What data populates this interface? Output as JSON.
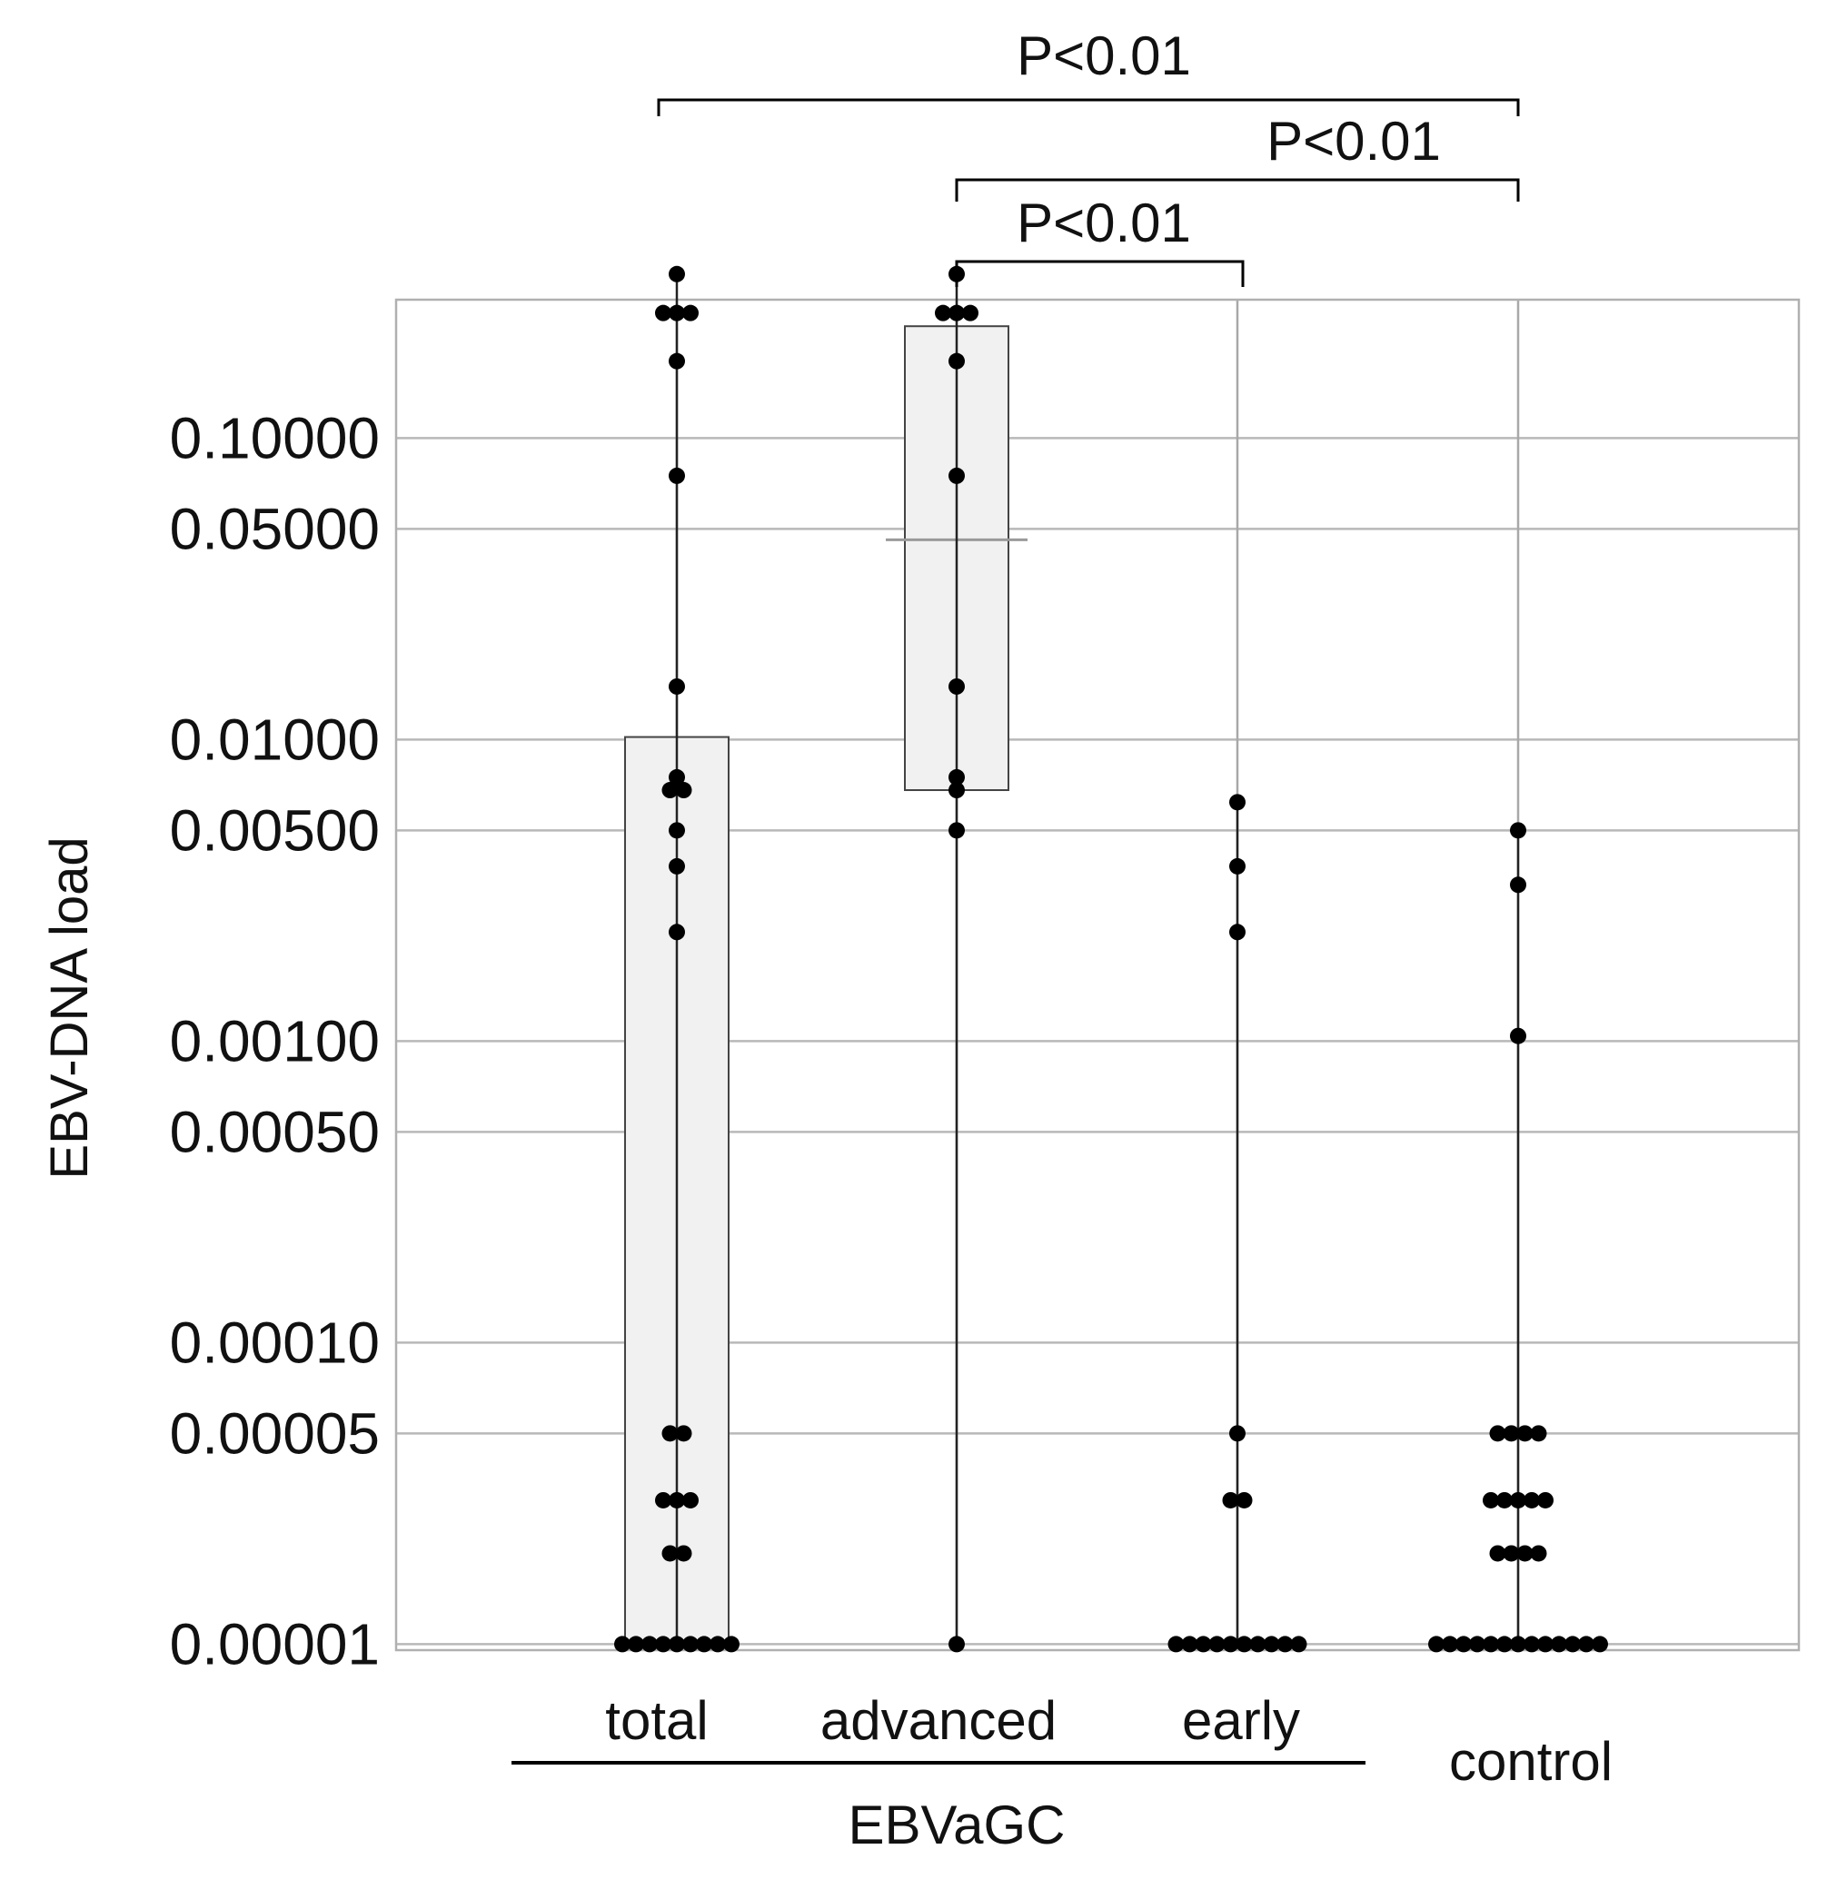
{
  "chart_data": {
    "type": "scatter",
    "ylabel": "EBV-DNA load",
    "yscale": "log",
    "ylim": [
      1e-05,
      0.4
    ],
    "ytick_labels": [
      {
        "value": 0.1,
        "label": "0.10000"
      },
      {
        "value": 0.05,
        "label": "0.05000"
      },
      {
        "value": 0.01,
        "label": "0.01000"
      },
      {
        "value": 0.005,
        "label": "0.00500"
      },
      {
        "value": 0.001,
        "label": "0.00100"
      },
      {
        "value": 0.0005,
        "label": "0.00050"
      },
      {
        "value": 0.0001,
        "label": "0.00010"
      },
      {
        "value": 5e-05,
        "label": "0.00005"
      },
      {
        "value": 1e-05,
        "label": "0.00001"
      }
    ],
    "grid": true,
    "categories": [
      "total",
      "advanced",
      "early",
      "control"
    ],
    "group_label": "EBVaGC",
    "group_members": [
      "total",
      "advanced",
      "early"
    ],
    "series": [
      {
        "category": "total",
        "values": [
          0.35,
          0.26,
          0.26,
          0.26,
          0.18,
          0.075,
          0.015,
          0.0075,
          0.0068,
          0.0068,
          0.005,
          0.0038,
          0.0023,
          5e-05,
          5e-05,
          3e-05,
          3e-05,
          3e-05,
          2e-05,
          2e-05,
          1e-05,
          1e-05,
          1e-05,
          1e-05,
          1e-05,
          1e-05,
          1e-05,
          1e-05,
          1e-05
        ],
        "box": {
          "low": 1e-05,
          "high": 0.0102
        }
      },
      {
        "category": "advanced",
        "values": [
          0.35,
          0.26,
          0.26,
          0.26,
          0.18,
          0.075,
          0.015,
          0.0075,
          0.0068,
          0.005,
          1e-05
        ],
        "box": {
          "low": 0.0068,
          "high": 0.235,
          "mean": 0.046
        }
      },
      {
        "category": "early",
        "values": [
          0.0062,
          0.0038,
          0.0023,
          5e-05,
          3e-05,
          3e-05,
          1e-05,
          1e-05,
          1e-05,
          1e-05,
          1e-05,
          1e-05,
          1e-05,
          1e-05,
          1e-05,
          1e-05
        ]
      },
      {
        "category": "control",
        "values": [
          0.005,
          0.0033,
          0.00104,
          5e-05,
          5e-05,
          5e-05,
          5e-05,
          3e-05,
          3e-05,
          3e-05,
          3e-05,
          3e-05,
          2e-05,
          2e-05,
          2e-05,
          2e-05,
          1e-05,
          1e-05,
          1e-05,
          1e-05,
          1e-05,
          1e-05,
          1e-05,
          1e-05,
          1e-05,
          1e-05,
          1e-05,
          1e-05,
          1e-05
        ]
      }
    ],
    "annotations": [
      {
        "from": "total",
        "to": "control",
        "text": "P<0.01"
      },
      {
        "from": "advanced",
        "to": "control",
        "text": "P<0.01"
      },
      {
        "from": "advanced",
        "to": "early",
        "text": "P<0.01"
      }
    ]
  }
}
